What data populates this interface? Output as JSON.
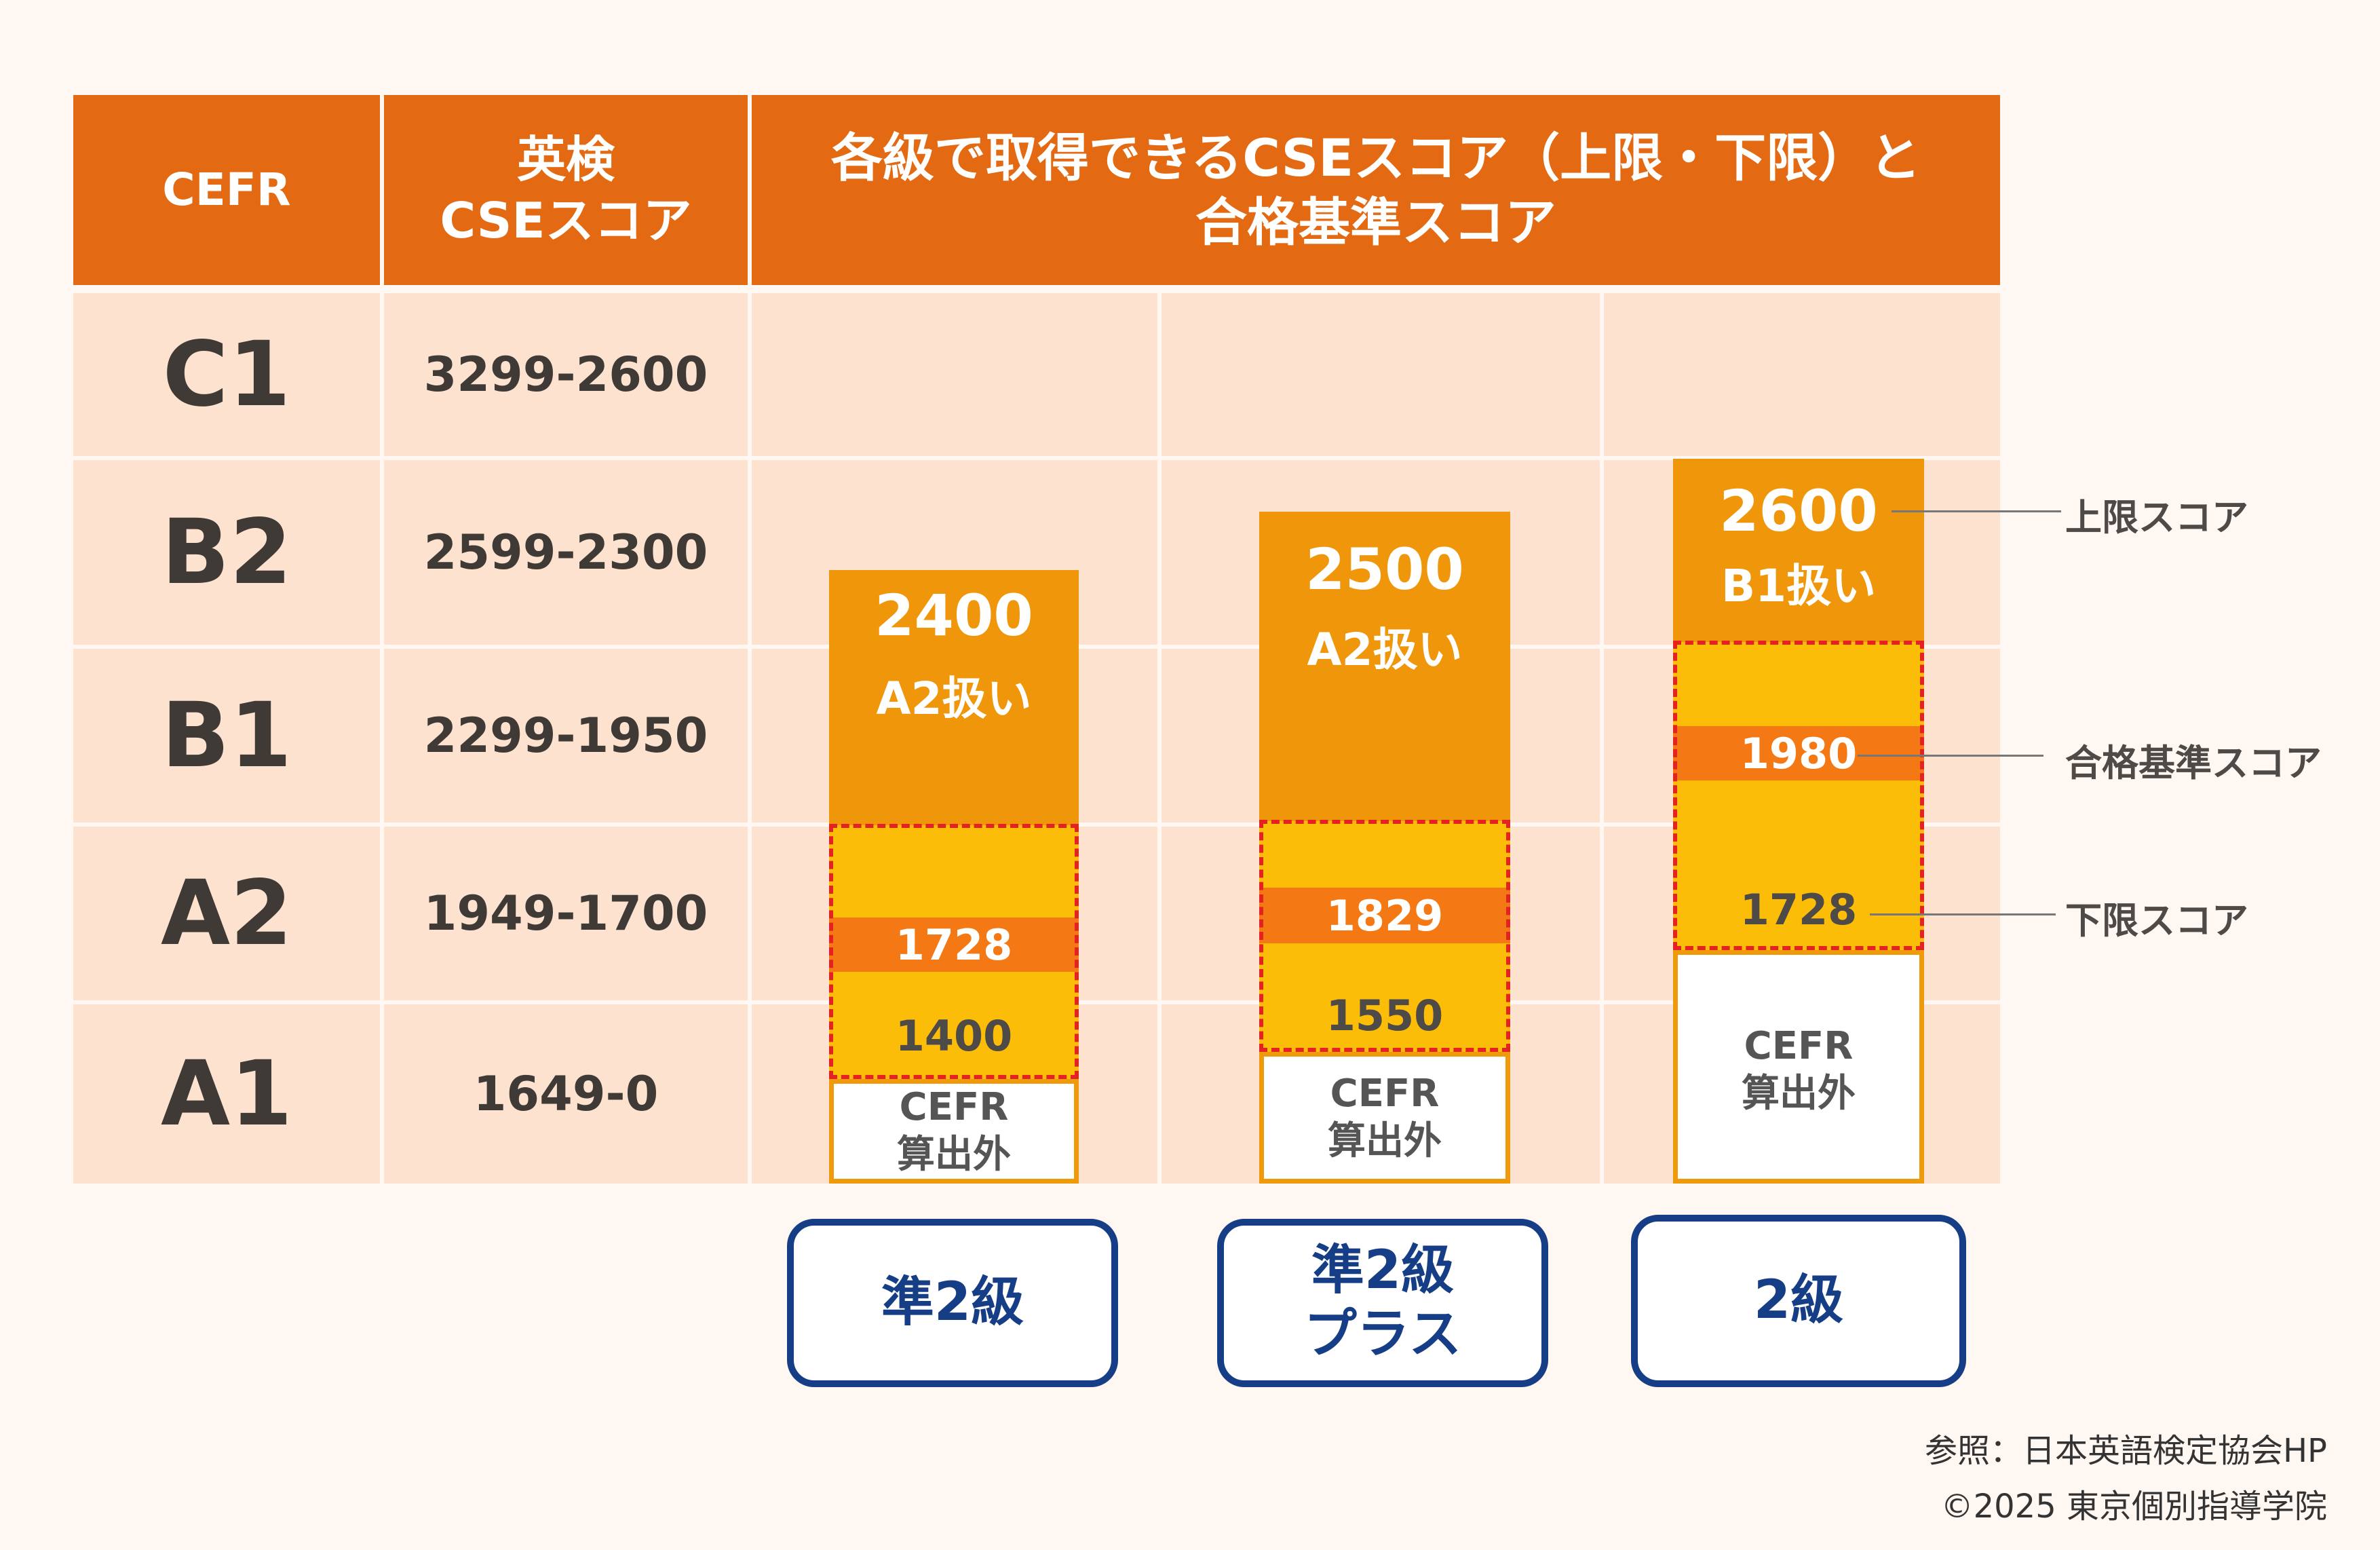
{
  "header": {
    "cefr_label": "CEFR",
    "eiken_line1": "英検",
    "eiken_line2": "CSEスコア",
    "score_line1": "各級で取得できるCSEスコア（上限・下限）と",
    "score_line2": "合格基準スコア"
  },
  "rows": [
    {
      "level": "C1",
      "range": "3299-2600"
    },
    {
      "level": "B2",
      "range": "2599-2300"
    },
    {
      "level": "B1",
      "range": "2299-1950"
    },
    {
      "level": "A2",
      "range": "1949-1700"
    },
    {
      "level": "A1",
      "range": "1649-0"
    }
  ],
  "grades": [
    {
      "cap_score": "2400",
      "cap_label": "A2扱い",
      "pass_score": "1728",
      "lower_score": "1400",
      "outside_line1": "CEFR",
      "outside_line2": "算出外",
      "button_line1": "準2級",
      "button_line2": ""
    },
    {
      "cap_score": "2500",
      "cap_label": "A2扱い",
      "pass_score": "1829",
      "lower_score": "1550",
      "outside_line1": "CEFR",
      "outside_line2": "算出外",
      "button_line1": "準2級",
      "button_line2": "プラス"
    },
    {
      "cap_score": "2600",
      "cap_label": "B1扱い",
      "pass_score": "1980",
      "lower_score": "1728",
      "outside_line1": "CEFR",
      "outside_line2": "算出外",
      "button_line1": "2級",
      "button_line2": ""
    }
  ],
  "annotations": {
    "upper": "上限スコア",
    "pass": "合格基準スコア",
    "lower": "下限スコア"
  },
  "footer": {
    "source": "参照：日本英語検定協会HP",
    "copyright": "©2025 東京個別指導学院"
  },
  "colors": {
    "header": "#e36a12",
    "row_bg": "#fde2cf",
    "cap_orange": "#f0960a",
    "yellow": "#fcbd08",
    "pass_bar": "#f47814",
    "dashed_border": "#e52222",
    "grade_button": "#163e86"
  }
}
